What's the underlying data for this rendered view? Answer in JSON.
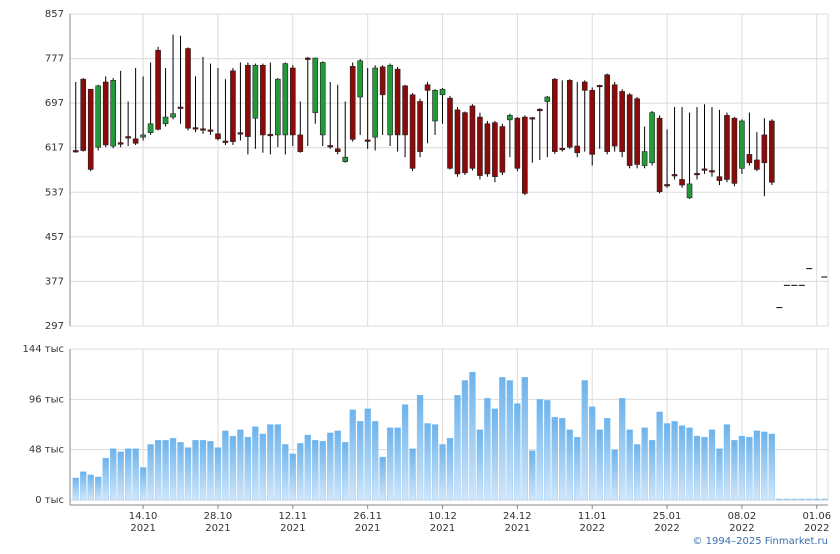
{
  "chart_data": [
    {
      "type": "candlestick",
      "up_color": "#229a3a",
      "down_color": "#8b0a0a",
      "grid": true,
      "ylim": [
        297,
        857
      ],
      "yticks": [
        297,
        377,
        457,
        537,
        617,
        697,
        777,
        857
      ],
      "open": [
        612,
        740,
        722,
        618,
        735,
        620,
        626,
        637,
        633,
        636,
        644,
        792,
        660,
        672,
        690,
        795,
        653,
        651,
        649,
        642,
        629,
        755,
        644,
        765,
        670,
        765,
        641,
        640,
        640,
        760,
        640,
        778,
        680,
        640,
        621,
        615,
        592,
        763,
        708,
        631,
        636,
        762,
        640,
        758,
        728,
        712,
        700,
        730,
        665,
        712,
        706,
        685,
        680,
        692,
        672,
        660,
        662,
        655,
        667,
        670,
        672,
        671,
        686,
        700,
        740,
        616,
        738,
        620,
        735,
        720,
        729,
        748,
        730,
        718,
        712,
        705,
        585,
        590,
        670,
        551,
        569,
        560,
        527,
        571,
        579,
        576,
        565,
        675,
        670,
        580,
        605,
        595,
        640,
        665,
        330,
        370,
        370,
        370,
        400,
        null,
        385
      ],
      "high": [
        735,
        742,
        722,
        730,
        745,
        742,
        755,
        700,
        760,
        745,
        770,
        798,
        760,
        820,
        818,
        797,
        745,
        780,
        768,
        760,
        740,
        760,
        770,
        770,
        768,
        768,
        770,
        742,
        770,
        765,
        700,
        780,
        778,
        772,
        735,
        730,
        700,
        770,
        776,
        760,
        765,
        765,
        768,
        762,
        730,
        715,
        705,
        735,
        722,
        724,
        710,
        690,
        682,
        695,
        680,
        665,
        665,
        660,
        678,
        672,
        675,
        672,
        688,
        710,
        742,
        738,
        740,
        735,
        738,
        725,
        730,
        750,
        735,
        722,
        715,
        708,
        655,
        683,
        675,
        650,
        690,
        690,
        680,
        690,
        695,
        690,
        685,
        680,
        672,
        668,
        680,
        645,
        670,
        668,
        330,
        370,
        370,
        370,
        400,
        null,
        385
      ],
      "low": [
        608,
        610,
        575,
        612,
        618,
        616,
        618,
        620,
        622,
        630,
        640,
        648,
        655,
        668,
        660,
        648,
        645,
        642,
        640,
        630,
        622,
        622,
        630,
        605,
        615,
        608,
        605,
        618,
        605,
        620,
        608,
        620,
        660,
        620,
        615,
        605,
        590,
        628,
        640,
        615,
        612,
        640,
        620,
        610,
        600,
        575,
        600,
        625,
        640,
        660,
        578,
        565,
        568,
        576,
        560,
        565,
        555,
        568,
        600,
        575,
        532,
        590,
        595,
        600,
        606,
        610,
        615,
        600,
        610,
        585,
        615,
        605,
        610,
        600,
        580,
        580,
        580,
        585,
        535,
        545,
        560,
        545,
        525,
        560,
        570,
        565,
        550,
        555,
        548,
        570,
        585,
        575,
        530,
        550,
        330,
        370,
        370,
        370,
        400,
        null,
        385
      ],
      "close": [
        610,
        612,
        578,
        728,
        622,
        738,
        624,
        636,
        625,
        640,
        660,
        650,
        672,
        678,
        688,
        652,
        651,
        649,
        647,
        633,
        627,
        628,
        642,
        637,
        765,
        640,
        639,
        740,
        768,
        640,
        610,
        776,
        778,
        770,
        619,
        610,
        600,
        632,
        773,
        629,
        760,
        712,
        765,
        640,
        640,
        580,
        610,
        720,
        720,
        722,
        580,
        570,
        572,
        580,
        567,
        570,
        565,
        573,
        675,
        580,
        535,
        669,
        684,
        708,
        610,
        614,
        618,
        608,
        720,
        605,
        727,
        610,
        620,
        610,
        585,
        587,
        610,
        680,
        538,
        549,
        567,
        550,
        552,
        569,
        577,
        574,
        558,
        560,
        553,
        665,
        590,
        578,
        590,
        555,
        330,
        370,
        370,
        370,
        400,
        null,
        385
      ]
    },
    {
      "type": "bar",
      "color": "#7dbdf0",
      "grid": true,
      "ylim": [
        0,
        144
      ],
      "yticks": [
        {
          "value": 0,
          "label": "0 тыс"
        },
        {
          "value": 48,
          "label": "48 тыс"
        },
        {
          "value": 96,
          "label": "96 тыс"
        },
        {
          "value": 144,
          "label": "144 тыс"
        }
      ],
      "categories": [
        null,
        null,
        null,
        null,
        null,
        null,
        null,
        null,
        null,
        [
          "14.10",
          "2021"
        ],
        null,
        null,
        null,
        null,
        null,
        null,
        null,
        null,
        null,
        [
          "28.10",
          "2021"
        ],
        null,
        null,
        null,
        null,
        null,
        null,
        null,
        null,
        null,
        [
          "12.11",
          "2021"
        ],
        null,
        null,
        null,
        null,
        null,
        null,
        null,
        null,
        null,
        [
          "26.11",
          "2021"
        ],
        null,
        null,
        null,
        null,
        null,
        null,
        null,
        null,
        null,
        [
          "10.12",
          "2021"
        ],
        null,
        null,
        null,
        null,
        null,
        null,
        null,
        null,
        null,
        [
          "24.12",
          "2021"
        ],
        null,
        null,
        null,
        null,
        null,
        null,
        null,
        null,
        null,
        [
          "11.01",
          "2022"
        ],
        null,
        null,
        null,
        null,
        null,
        null,
        null,
        null,
        null,
        [
          "25.01",
          "2022"
        ],
        null,
        null,
        null,
        null,
        null,
        null,
        null,
        null,
        null,
        [
          "08.02",
          "2022"
        ],
        null,
        null,
        null,
        null,
        null,
        null,
        null,
        null,
        null,
        [
          "01.06",
          "2022"
        ],
        null
      ],
      "values": [
        21,
        27,
        24,
        22,
        40,
        49,
        46,
        49,
        49,
        31,
        53,
        57,
        57,
        59,
        55,
        50,
        57,
        57,
        56,
        50,
        66,
        61,
        67,
        60,
        70,
        63,
        72,
        72,
        53,
        44,
        54,
        62,
        57,
        56,
        64,
        66,
        55,
        86,
        75,
        87,
        75,
        41,
        69,
        69,
        91,
        49,
        100,
        73,
        72,
        53,
        59,
        100,
        114,
        122,
        67,
        97,
        87,
        117,
        114,
        92,
        117,
        47,
        96,
        95,
        79,
        78,
        67,
        60,
        114,
        89,
        67,
        78,
        48,
        97,
        67,
        53,
        69,
        57,
        84,
        73,
        75,
        71,
        69,
        61,
        60,
        67,
        49,
        72,
        57,
        61,
        60,
        66,
        65,
        63,
        1,
        1,
        1,
        1,
        1,
        1,
        1
      ]
    }
  ],
  "copyright": "© 1994–2025 Finmarket.ru"
}
